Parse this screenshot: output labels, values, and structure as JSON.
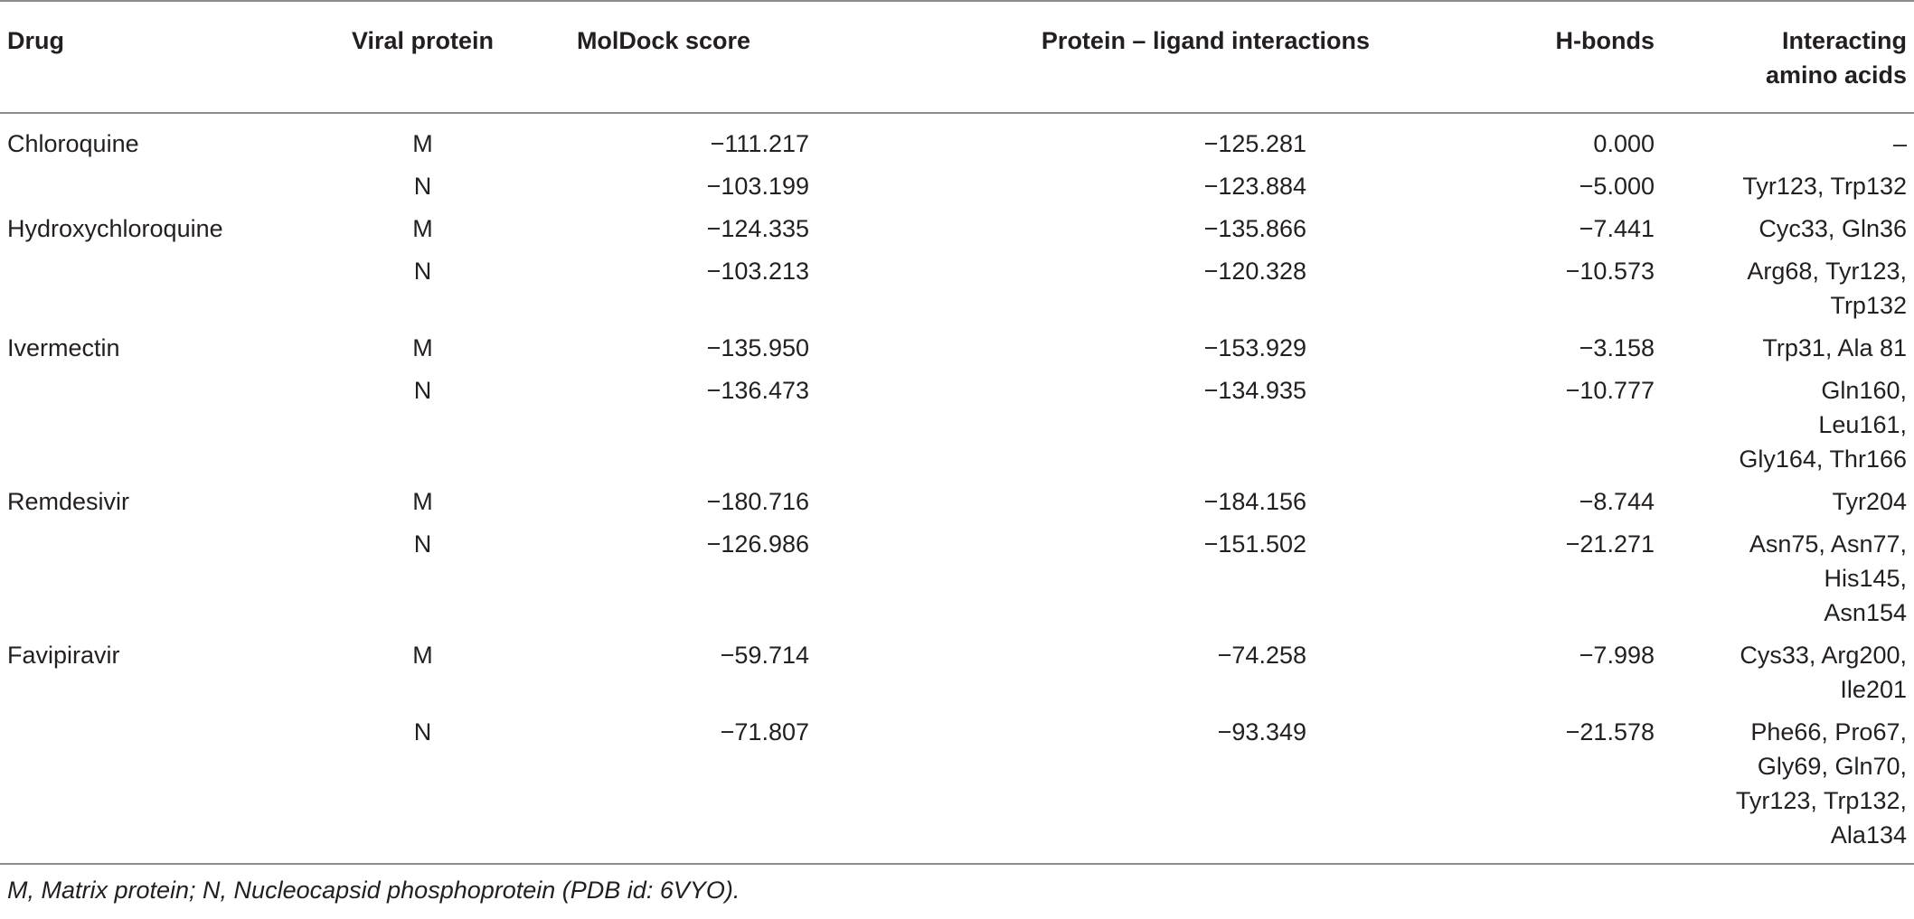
{
  "table": {
    "headers": {
      "drug": "Drug",
      "viral_protein": "Viral protein",
      "moldock_score": "MolDock score",
      "protein_ligand": "Protein – ligand interactions",
      "h_bonds": "H-bonds",
      "amino_acids_line1": "Interacting",
      "amino_acids_line2": "amino acids"
    },
    "rows": [
      {
        "drug": "Chloroquine",
        "protein": "M",
        "score": "−111.217",
        "interactions": "−125.281",
        "hbonds": "0.000",
        "amino": [
          "–"
        ]
      },
      {
        "drug": "",
        "protein": "N",
        "score": "−103.199",
        "interactions": "−123.884",
        "hbonds": "−5.000",
        "amino": [
          "Tyr123, Trp132"
        ]
      },
      {
        "drug": "Hydroxychloroquine",
        "protein": "M",
        "score": "−124.335",
        "interactions": "−135.866",
        "hbonds": "−7.441",
        "amino": [
          "Cyc33, Gln36"
        ]
      },
      {
        "drug": "",
        "protein": "N",
        "score": "−103.213",
        "interactions": "−120.328",
        "hbonds": "−10.573",
        "amino": [
          "Arg68, Tyr123,",
          "Trp132"
        ]
      },
      {
        "drug": "Ivermectin",
        "protein": "M",
        "score": "−135.950",
        "interactions": "−153.929",
        "hbonds": "−3.158",
        "amino": [
          "Trp31, Ala 81"
        ]
      },
      {
        "drug": "",
        "protein": "N",
        "score": "−136.473",
        "interactions": "−134.935",
        "hbonds": "−10.777",
        "amino": [
          "Gln160,",
          "Leu161,",
          "Gly164, Thr166"
        ]
      },
      {
        "drug": "Remdesivir",
        "protein": "M",
        "score": "−180.716",
        "interactions": "−184.156",
        "hbonds": "−8.744",
        "amino": [
          "Tyr204"
        ]
      },
      {
        "drug": "",
        "protein": "N",
        "score": "−126.986",
        "interactions": "−151.502",
        "hbonds": "−21.271",
        "amino": [
          "Asn75, Asn77,",
          "His145,",
          "Asn154"
        ]
      },
      {
        "drug": "Favipiravir",
        "protein": "M",
        "score": "−59.714",
        "interactions": "−74.258",
        "hbonds": "−7.998",
        "amino": [
          "Cys33, Arg200,",
          "Ile201"
        ]
      },
      {
        "drug": "",
        "protein": "N",
        "score": "−71.807",
        "interactions": "−93.349",
        "hbonds": "−21.578",
        "amino": [
          "Phe66, Pro67,",
          "Gly69, Gln70,",
          "Tyr123, Trp132,",
          "Ala134"
        ]
      }
    ]
  },
  "footnote": "M, Matrix protein; N, Nucleocapsid phosphoprotein (PDB id: 6VYO)."
}
